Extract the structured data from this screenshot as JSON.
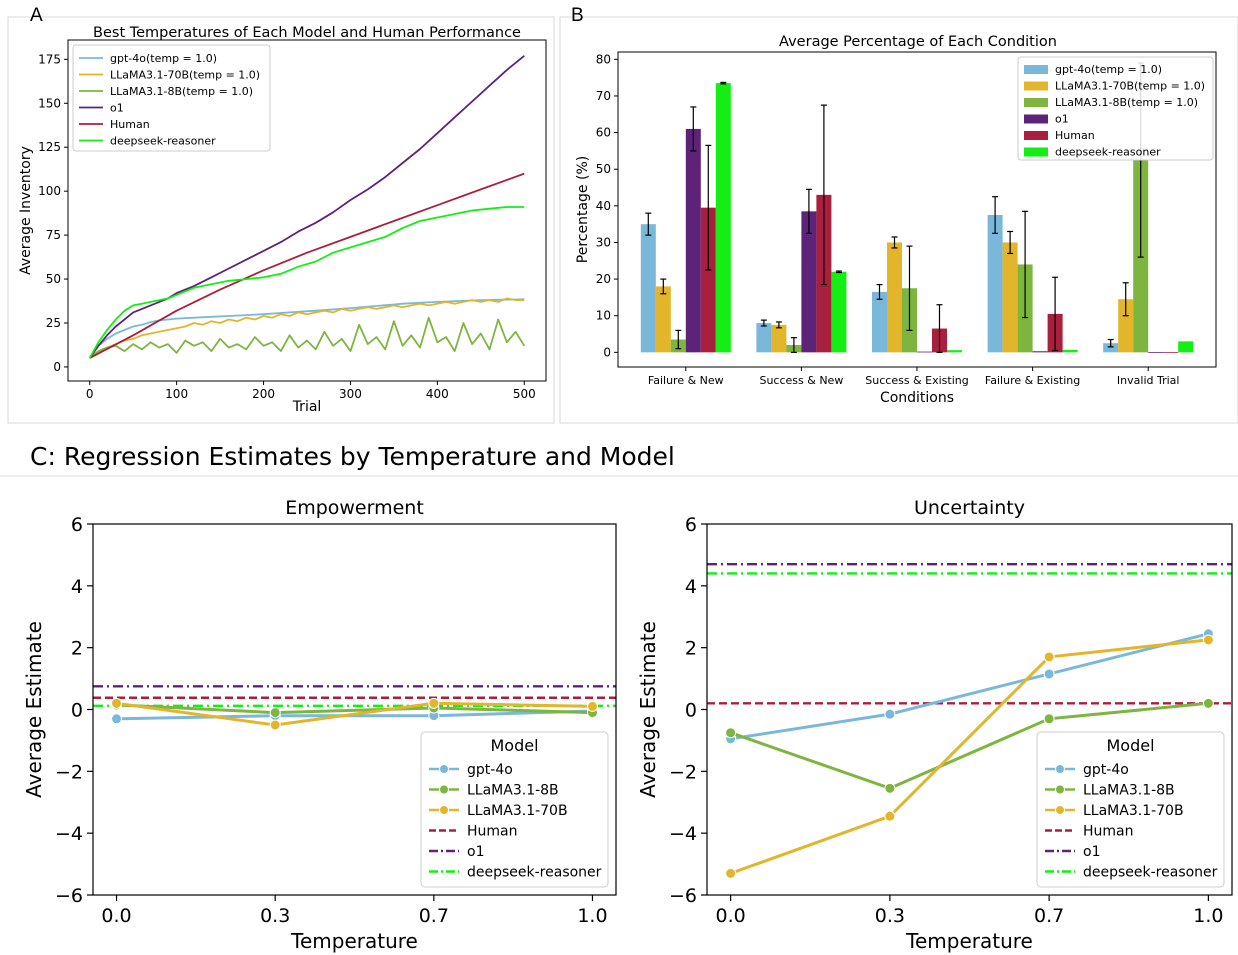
{
  "figure": {
    "panel_A_label": "A",
    "panel_B_label": "B",
    "panel_C_title": "C: Regression Estimates by Temperature and Model"
  },
  "colors": {
    "gpt4o": "#7ab8db",
    "llama70b": "#e2b52b",
    "llama8b": "#7db53f",
    "o1": "#5c2378",
    "human": "#a9203e",
    "deepseek": "#14ee14"
  },
  "chart_data": [
    {
      "id": "A",
      "type": "line",
      "title": "Best Temperatures of Each Model and Human Performance",
      "xlabel": "Trial",
      "ylabel": "Average Inventory",
      "xlim": [
        -25,
        525
      ],
      "ylim": [
        -8,
        186
      ],
      "xticks": [
        0,
        100,
        200,
        300,
        400,
        500
      ],
      "yticks": [
        0,
        25,
        50,
        75,
        100,
        125,
        150,
        175
      ],
      "legend_position": "top-left",
      "series": [
        {
          "name": "gpt-4o(temp = 1.0)",
          "color_key": "gpt4o",
          "x": [
            0,
            5,
            10,
            20,
            30,
            40,
            50,
            60,
            70,
            80,
            90,
            100,
            120,
            140,
            160,
            180,
            200,
            230,
            260,
            300,
            350,
            360,
            400,
            450,
            500
          ],
          "y": [
            5,
            9,
            12,
            16,
            19,
            21,
            23,
            24,
            25.5,
            26.5,
            27,
            27.5,
            28,
            28.5,
            29,
            29.5,
            30,
            31,
            32,
            33.5,
            35.5,
            36,
            37,
            38,
            38.5
          ]
        },
        {
          "name": "LLaMA3.1-70B(temp = 1.0)",
          "color_key": "llama70b",
          "x": [
            0,
            10,
            20,
            30,
            40,
            50,
            60,
            70,
            80,
            90,
            100,
            110,
            120,
            130,
            140,
            150,
            160,
            170,
            180,
            190,
            200,
            210,
            220,
            230,
            240,
            250,
            260,
            270,
            280,
            290,
            300,
            310,
            320,
            330,
            340,
            350,
            360,
            370,
            380,
            390,
            400,
            410,
            420,
            430,
            440,
            450,
            460,
            470,
            480,
            490,
            500
          ],
          "y": [
            5,
            8,
            11,
            13,
            15,
            16,
            18,
            19,
            20,
            21,
            22,
            23,
            25,
            24,
            26,
            25,
            27,
            26,
            28,
            27,
            29,
            28,
            30,
            29,
            31,
            30,
            31,
            32,
            31,
            33,
            32,
            33,
            34,
            33,
            34,
            35,
            34,
            35,
            36,
            35,
            36,
            37,
            36,
            37,
            38,
            37,
            38,
            37,
            39,
            38,
            38
          ]
        },
        {
          "name": "LLaMA3.1-8B(temp = 1.0)",
          "color_key": "llama8b",
          "x": [
            0,
            10,
            20,
            30,
            40,
            50,
            60,
            70,
            80,
            90,
            100,
            110,
            120,
            130,
            140,
            150,
            160,
            170,
            180,
            190,
            200,
            210,
            220,
            230,
            240,
            250,
            260,
            270,
            280,
            290,
            300,
            310,
            320,
            330,
            340,
            350,
            360,
            370,
            380,
            390,
            400,
            410,
            420,
            430,
            440,
            450,
            460,
            470,
            480,
            490,
            500
          ],
          "y": [
            5,
            9,
            11,
            12,
            9,
            13,
            10,
            14,
            11,
            13,
            8,
            15,
            12,
            14,
            9,
            16,
            11,
            13,
            10,
            17,
            12,
            14,
            9,
            18,
            11,
            15,
            10,
            20,
            12,
            16,
            9,
            24,
            13,
            17,
            10,
            26,
            12,
            18,
            11,
            28,
            14,
            17,
            9,
            25,
            13,
            19,
            10,
            27,
            14,
            20,
            12
          ]
        },
        {
          "name": "o1",
          "color_key": "o1",
          "x": [
            0,
            10,
            20,
            30,
            40,
            50,
            60,
            70,
            80,
            90,
            100,
            120,
            140,
            160,
            180,
            200,
            220,
            240,
            260,
            280,
            300,
            320,
            340,
            360,
            380,
            400,
            420,
            440,
            460,
            480,
            500
          ],
          "y": [
            5,
            12,
            18,
            23,
            27,
            31,
            33,
            35,
            37,
            39,
            42,
            46,
            51,
            56,
            61,
            66,
            71,
            77,
            82,
            88,
            95,
            101,
            108,
            116,
            124,
            133,
            142,
            151,
            160,
            169,
            177
          ]
        },
        {
          "name": "Human",
          "color_key": "human",
          "x": [
            0,
            50,
            100,
            150,
            200,
            250,
            300,
            350,
            400,
            450,
            500
          ],
          "y": [
            5,
            18,
            32,
            44,
            55,
            65,
            74,
            83,
            92,
            101,
            110
          ]
        },
        {
          "name": "deepseek-reasoner",
          "color_key": "deepseek",
          "x": [
            0,
            10,
            20,
            30,
            40,
            50,
            60,
            70,
            80,
            90,
            100,
            120,
            140,
            160,
            180,
            200,
            220,
            240,
            260,
            280,
            300,
            320,
            340,
            360,
            380,
            400,
            420,
            440,
            460,
            480,
            500
          ],
          "y": [
            5,
            14,
            21,
            27,
            32,
            35,
            36,
            37,
            38,
            39,
            41,
            45,
            47,
            49,
            50,
            51,
            53,
            57,
            60,
            65,
            68,
            71,
            74,
            79,
            83,
            85,
            87,
            89,
            90,
            91,
            91
          ]
        }
      ]
    },
    {
      "id": "B",
      "type": "bar",
      "title": "Average Percentage of Each Condition",
      "xlabel": "Conditions",
      "ylabel": "Percentage (%)",
      "ylim": [
        -4,
        82
      ],
      "yticks": [
        0,
        10,
        20,
        30,
        40,
        50,
        60,
        70,
        80
      ],
      "legend_position": "top-right",
      "categories": [
        "Failure & New",
        "Success & New",
        "Success & Existing",
        "Failure & Existing",
        "Invalid Trial"
      ],
      "series": [
        {
          "name": "gpt-4o(temp = 1.0)",
          "color_key": "gpt4o",
          "values": [
            35,
            8,
            16.5,
            37.5,
            2.5
          ],
          "errors": [
            3,
            0.8,
            2,
            5,
            1
          ]
        },
        {
          "name": "LLaMA3.1-70B(temp = 1.0)",
          "color_key": "llama70b",
          "values": [
            18,
            7.5,
            30,
            30,
            14.5
          ],
          "errors": [
            2,
            0.8,
            1.5,
            3,
            4.5
          ]
        },
        {
          "name": "LLaMA3.1-8B(temp = 1.0)",
          "color_key": "llama8b",
          "values": [
            3.5,
            2,
            17.5,
            24,
            52.5
          ],
          "errors": [
            2.5,
            2,
            11.5,
            14.5,
            26.5
          ]
        },
        {
          "name": "o1",
          "color_key": "o1",
          "values": [
            61,
            38.5,
            0.2,
            0.3,
            0.1
          ],
          "errors": [
            6,
            6,
            0,
            0,
            0
          ]
        },
        {
          "name": "Human",
          "color_key": "human",
          "values": [
            39.5,
            43,
            6.5,
            10.5,
            0.1
          ],
          "errors": [
            17,
            24.5,
            6.5,
            10,
            0
          ]
        },
        {
          "name": "deepseek-reasoner",
          "color_key": "deepseek",
          "values": [
            73.5,
            22,
            0.6,
            0.7,
            3
          ],
          "errors": [
            0.2,
            0.2,
            0,
            0,
            0
          ]
        }
      ]
    },
    {
      "id": "C1",
      "type": "line",
      "title": "Empowerment",
      "xlabel": "Temperature",
      "ylabel": "Average Estimate",
      "ylim": [
        -6,
        6
      ],
      "yticks": [
        -6,
        -4,
        -2,
        0,
        2,
        4,
        6
      ],
      "categories": [
        "0.0",
        "0.3",
        "0.7",
        "1.0"
      ],
      "legend_title": "Model",
      "legend_position": "lower-right",
      "series": [
        {
          "name": "gpt-4o",
          "color_key": "gpt4o",
          "style": "marker",
          "values": [
            -0.3,
            -0.2,
            -0.2,
            -0.05
          ]
        },
        {
          "name": "LLaMA3.1-8B",
          "color_key": "llama8b",
          "style": "marker",
          "values": [
            0.15,
            -0.1,
            0.05,
            -0.1
          ]
        },
        {
          "name": "LLaMA3.1-70B",
          "color_key": "llama70b",
          "style": "marker",
          "values": [
            0.2,
            -0.5,
            0.2,
            0.1
          ]
        },
        {
          "name": "Human",
          "color_key": "human",
          "style": "dashed",
          "value": 0.38
        },
        {
          "name": "o1",
          "color_key": "o1",
          "style": "dashdot",
          "value": 0.75
        },
        {
          "name": "deepseek-reasoner",
          "color_key": "deepseek",
          "style": "dashdot",
          "value": 0.12
        }
      ]
    },
    {
      "id": "C2",
      "type": "line",
      "title": "Uncertainty",
      "xlabel": "Temperature",
      "ylabel": "Average Estimate",
      "ylim": [
        -6,
        6
      ],
      "yticks": [
        -6,
        -4,
        -2,
        0,
        2,
        4,
        6
      ],
      "categories": [
        "0.0",
        "0.3",
        "0.7",
        "1.0"
      ],
      "legend_title": "Model",
      "legend_position": "lower-right",
      "series": [
        {
          "name": "gpt-4o",
          "color_key": "gpt4o",
          "style": "marker",
          "values": [
            -0.95,
            -0.15,
            1.15,
            2.45
          ]
        },
        {
          "name": "LLaMA3.1-8B",
          "color_key": "llama8b",
          "style": "marker",
          "values": [
            -0.75,
            -2.55,
            -0.3,
            0.2
          ]
        },
        {
          "name": "LLaMA3.1-70B",
          "color_key": "llama70b",
          "style": "marker",
          "values": [
            -5.3,
            -3.45,
            1.7,
            2.25
          ]
        },
        {
          "name": "Human",
          "color_key": "human",
          "style": "dashed",
          "value": 0.2
        },
        {
          "name": "o1",
          "color_key": "o1",
          "style": "dashdot",
          "value": 4.7
        },
        {
          "name": "deepseek-reasoner",
          "color_key": "deepseek",
          "style": "dashdot",
          "value": 4.4
        }
      ]
    }
  ]
}
